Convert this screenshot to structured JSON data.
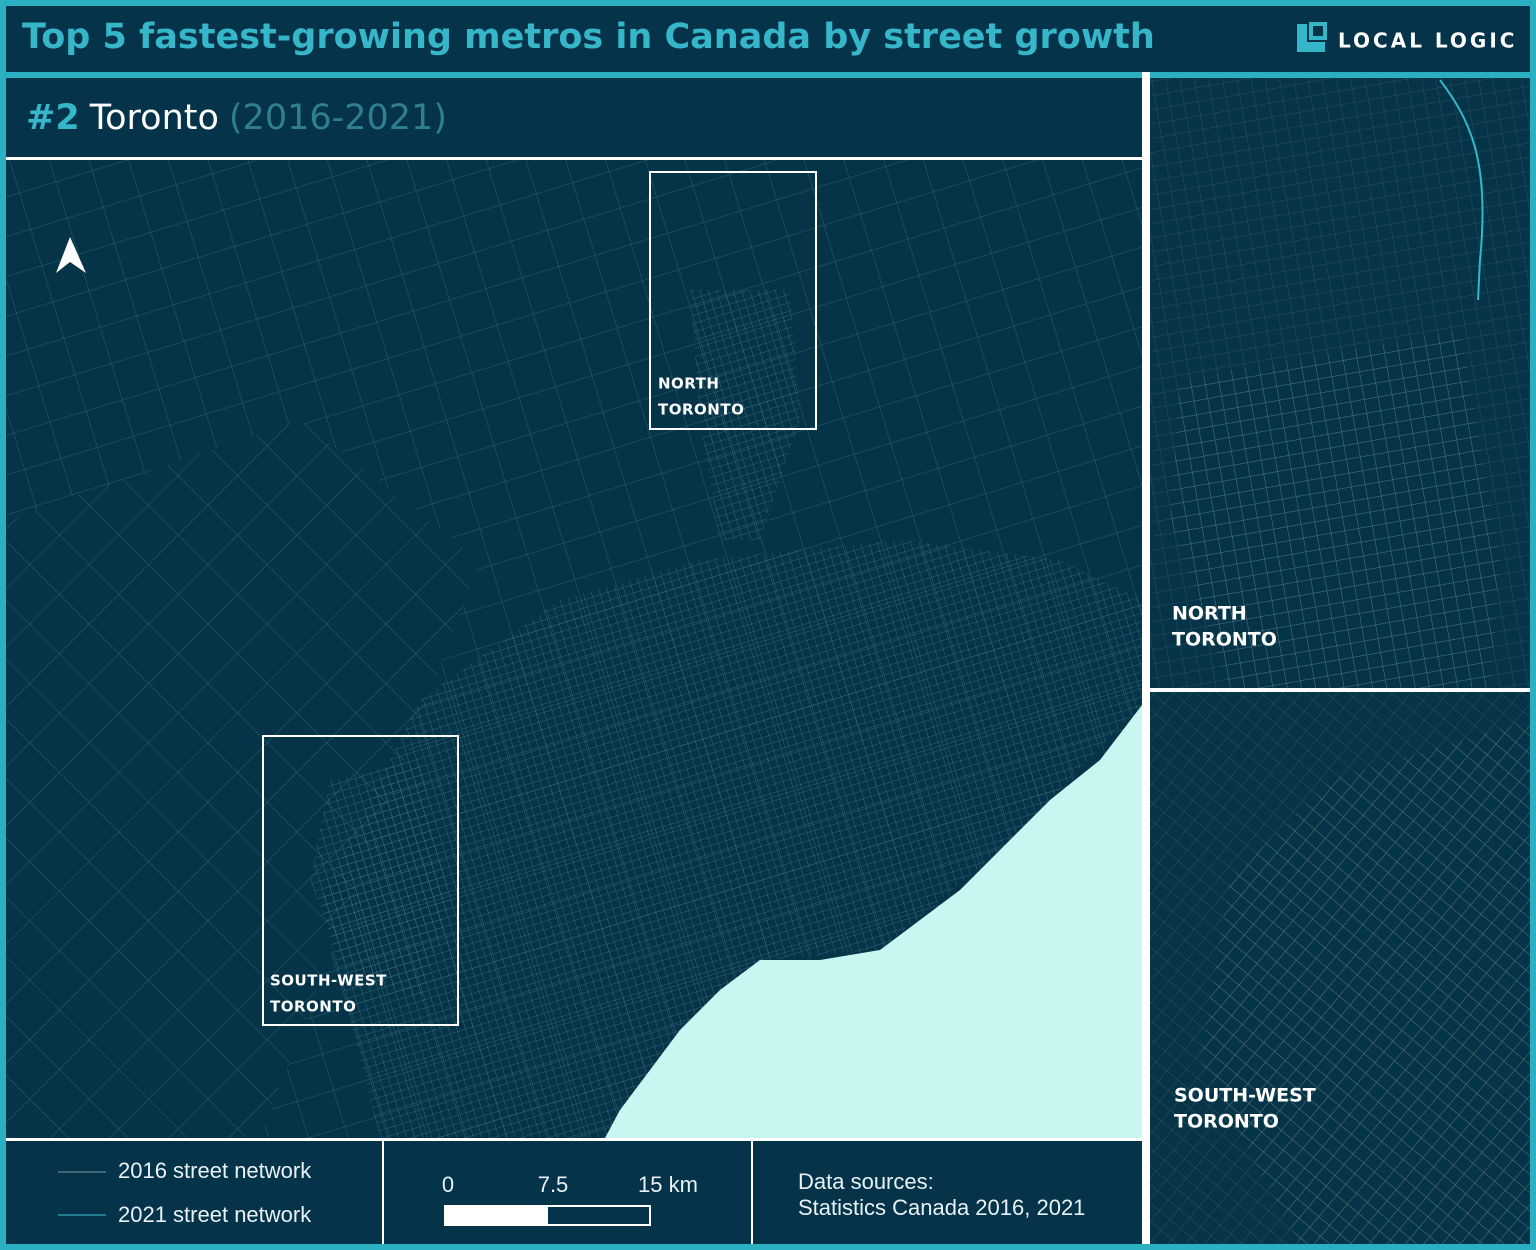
{
  "header": {
    "title": "Top 5 fastest-growing metros in Canada by street growth",
    "logo": "LOCAL LOGIC"
  },
  "panel": {
    "rank": "#2",
    "city": "Toronto",
    "period": "(2016-2021)"
  },
  "map": {
    "boxes": [
      {
        "lines": [
          "NORTH",
          "TORONTO"
        ]
      },
      {
        "lines": [
          "SOUTH-WEST",
          "TORONTO"
        ]
      }
    ]
  },
  "insets": [
    {
      "lines": [
        "NORTH",
        "TORONTO"
      ]
    },
    {
      "lines": [
        "SOUTH-WEST",
        "TORONTO"
      ]
    }
  ],
  "legend": {
    "items": [
      "2016 street network",
      "2021 street network"
    ]
  },
  "scale": {
    "labels": [
      "0",
      "7.5",
      "15 km"
    ]
  },
  "source": {
    "lines": [
      "Data sources:",
      "Statistics Canada 2016, 2021"
    ]
  }
}
